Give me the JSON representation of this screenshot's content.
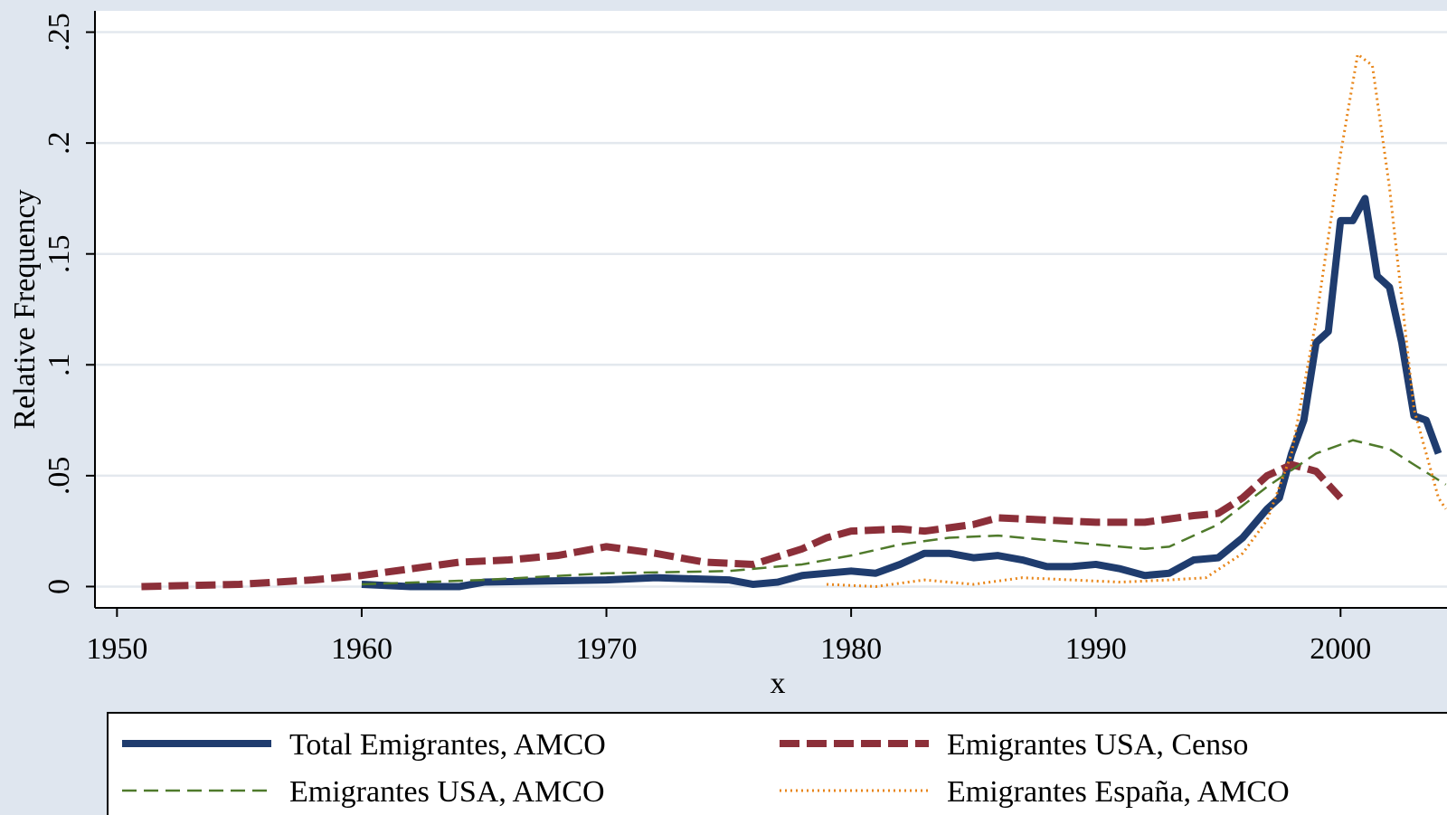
{
  "chart_data": {
    "type": "line",
    "xlabel": "x",
    "ylabel": "Relative Frequency",
    "xlim": [
      1949.1,
      2004.35
    ],
    "xticks": [
      1950,
      1960,
      1970,
      1980,
      1990,
      2000
    ],
    "ylim": [
      -0.0096,
      0.2596
    ],
    "yticks": [
      0,
      {
        "value": 0.05,
        "label": ".05"
      },
      {
        "value": 0.1,
        "label": ".1"
      },
      {
        "value": 0.15,
        "label": ".15"
      },
      {
        "value": 0.2,
        "label": ".2"
      },
      {
        "value": 0.25,
        "label": ".25"
      }
    ],
    "grid": true,
    "legend": "bottom",
    "series": [
      {
        "name": "Total Emigrantes, AMCO",
        "color": "#1f3c6e",
        "line_style": "solid",
        "x": [
          1960,
          1962,
          1964,
          1965,
          1970,
          1972,
          1975,
          1976,
          1977,
          1978,
          1980,
          1981,
          1982,
          1983,
          1984,
          1985,
          1986,
          1987,
          1988,
          1989,
          1990,
          1991,
          1992,
          1993,
          1994,
          1995,
          1996,
          1997,
          1997.5,
          1998,
          1998.5,
          1999,
          1999.5,
          2000,
          2000.5,
          2001,
          2001.5,
          2002,
          2002.5,
          2003,
          2003.5,
          2004
        ],
        "values": [
          0.001,
          0,
          0,
          0.002,
          0.003,
          0.004,
          0.003,
          0.001,
          0.002,
          0.005,
          0.007,
          0.006,
          0.01,
          0.015,
          0.015,
          0.013,
          0.014,
          0.012,
          0.009,
          0.009,
          0.01,
          0.008,
          0.005,
          0.006,
          0.012,
          0.013,
          0.022,
          0.035,
          0.04,
          0.06,
          0.075,
          0.11,
          0.115,
          0.165,
          0.165,
          0.175,
          0.14,
          0.135,
          0.11,
          0.077,
          0.075,
          0.06
        ]
      },
      {
        "name": "Emigrantes USA, Censo",
        "color": "#8c2f39",
        "line_style": "longdash",
        "x": [
          1951,
          1955,
          1958,
          1960,
          1962,
          1964,
          1966,
          1968,
          1970,
          1972,
          1974,
          1976,
          1978,
          1979,
          1980,
          1982,
          1983,
          1985,
          1986,
          1988,
          1990,
          1992,
          1994,
          1995,
          1996,
          1997,
          1998,
          1999,
          2000
        ],
        "values": [
          0,
          0.001,
          0.003,
          0.005,
          0.008,
          0.011,
          0.012,
          0.014,
          0.018,
          0.015,
          0.011,
          0.01,
          0.017,
          0.022,
          0.025,
          0.026,
          0.025,
          0.028,
          0.031,
          0.03,
          0.029,
          0.029,
          0.032,
          0.033,
          0.04,
          0.05,
          0.055,
          0.052,
          0.04
        ]
      },
      {
        "name": "Emigrantes USA, AMCO",
        "color": "#4f7a2b",
        "line_style": "dash",
        "x": [
          1960,
          1965,
          1970,
          1975,
          1978,
          1980,
          1982,
          1984,
          1986,
          1988,
          1990,
          1992,
          1993,
          1995,
          1997,
          1999,
          2000.5,
          2002,
          2003,
          2004.3
        ],
        "values": [
          0.001,
          0.003,
          0.006,
          0.007,
          0.01,
          0.014,
          0.019,
          0.022,
          0.023,
          0.021,
          0.019,
          0.017,
          0.018,
          0.028,
          0.045,
          0.06,
          0.066,
          0.062,
          0.055,
          0.046
        ]
      },
      {
        "name": "Emigrantes España, AMCO",
        "color": "#e8861a",
        "line_style": "dot",
        "x": [
          1979,
          1981,
          1983,
          1985,
          1987,
          1989,
          1991,
          1993,
          1994.5,
          1996,
          1997,
          1998,
          1999,
          2000,
          2000.7,
          2001.3,
          2002,
          2003,
          2004,
          2004.3
        ],
        "values": [
          0.001,
          0,
          0.003,
          0.001,
          0.004,
          0.003,
          0.002,
          0.003,
          0.004,
          0.015,
          0.03,
          0.06,
          0.12,
          0.195,
          0.24,
          0.235,
          0.18,
          0.08,
          0.04,
          0.035
        ]
      }
    ]
  }
}
